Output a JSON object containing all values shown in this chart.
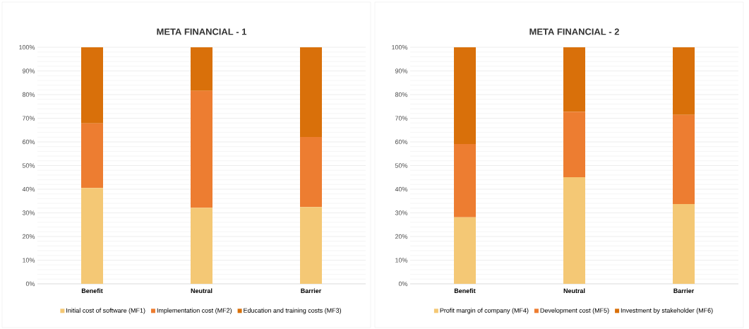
{
  "chart_data": [
    {
      "type": "bar",
      "title": "META FINANCIAL - 1",
      "stacked": true,
      "categories": [
        "Benefit",
        "Neutral",
        "Barrier"
      ],
      "series": [
        {
          "name": "Initial cost of software (MF1)",
          "color": "#f4c875",
          "values": [
            40.5,
            32.2,
            32.5
          ]
        },
        {
          "name": "Implementation cost (MF2)",
          "color": "#ed7d31",
          "values": [
            27.3,
            49.4,
            29.6
          ]
        },
        {
          "name": "Education and training costs (MF3)",
          "color": "#d9700a",
          "values": [
            32.2,
            18.4,
            37.9
          ]
        }
      ],
      "ylim": [
        0,
        100
      ],
      "yticks": [
        {
          "value": 0,
          "label": "0%"
        },
        {
          "value": 10,
          "label": "10%"
        },
        {
          "value": 20,
          "label": "20%"
        },
        {
          "value": 30,
          "label": "30%"
        },
        {
          "value": 40,
          "label": "40%"
        },
        {
          "value": 50,
          "label": "50%"
        },
        {
          "value": 60,
          "label": "60%"
        },
        {
          "value": 70,
          "label": "70%"
        },
        {
          "value": 80,
          "label": "80%"
        },
        {
          "value": 90,
          "label": "90%"
        },
        {
          "value": 100,
          "label": "100%"
        }
      ],
      "grid": "y",
      "legend": "bottom"
    },
    {
      "type": "bar",
      "title": "META FINANCIAL - 2",
      "stacked": true,
      "categories": [
        "Benefit",
        "Neutral",
        "Barrier"
      ],
      "series": [
        {
          "name": "Profit margin of company (MF4)",
          "color": "#f4c875",
          "values": [
            28.1,
            45.1,
            33.7
          ]
        },
        {
          "name": "Development cost (MF5)",
          "color": "#ed7d31",
          "values": [
            31.0,
            27.6,
            37.7
          ]
        },
        {
          "name": "Investment by stakeholder (MF6)",
          "color": "#d9700a",
          "values": [
            40.9,
            27.3,
            28.6
          ]
        }
      ],
      "ylim": [
        0,
        100
      ],
      "yticks": [
        {
          "value": 0,
          "label": "0%"
        },
        {
          "value": 10,
          "label": "10%"
        },
        {
          "value": 20,
          "label": "20%"
        },
        {
          "value": 30,
          "label": "30%"
        },
        {
          "value": 40,
          "label": "40%"
        },
        {
          "value": 50,
          "label": "50%"
        },
        {
          "value": 60,
          "label": "60%"
        },
        {
          "value": 70,
          "label": "70%"
        },
        {
          "value": 80,
          "label": "80%"
        },
        {
          "value": 90,
          "label": "90%"
        },
        {
          "value": 100,
          "label": "100%"
        }
      ],
      "grid": "y",
      "legend": "bottom"
    }
  ]
}
